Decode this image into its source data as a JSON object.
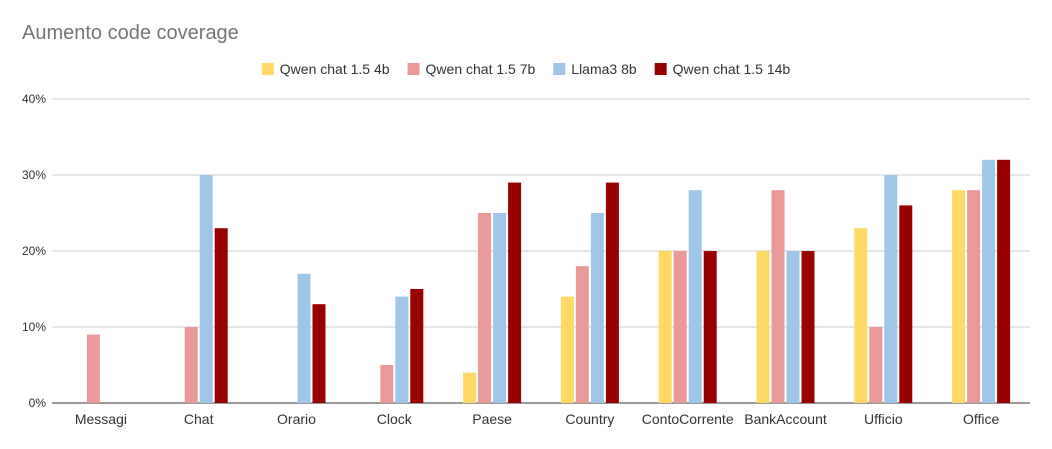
{
  "chart_data": {
    "type": "bar",
    "title": "Aumento code coverage",
    "xlabel": "",
    "ylabel": "",
    "ylim": [
      0,
      40
    ],
    "yticks": [
      0,
      10,
      20,
      30,
      40
    ],
    "y_tick_suffix": "%",
    "grid": true,
    "legend_position": "top",
    "categories": [
      "Messagi",
      "Chat",
      "Orario",
      "Clock",
      "Paese",
      "Country",
      "ContoCorrente",
      "BankAccount",
      "Ufficio",
      "Office"
    ],
    "series": [
      {
        "name": "Qwen chat 1.5 4b",
        "color": "#FFD966",
        "values": [
          0,
          0,
          0,
          0,
          4,
          14,
          20,
          20,
          23,
          28
        ]
      },
      {
        "name": "Qwen chat 1.5 7b",
        "color": "#EA9999",
        "values": [
          9,
          10,
          0,
          5,
          25,
          18,
          20,
          28,
          10,
          28
        ]
      },
      {
        "name": "Llama3 8b",
        "color": "#9FC5E8",
        "values": [
          0,
          30,
          17,
          14,
          25,
          25,
          28,
          20,
          30,
          32
        ]
      },
      {
        "name": "Qwen chat 1.5 14b",
        "color": "#990000",
        "values": [
          0,
          23,
          13,
          15,
          29,
          29,
          20,
          20,
          26,
          32
        ]
      }
    ]
  }
}
